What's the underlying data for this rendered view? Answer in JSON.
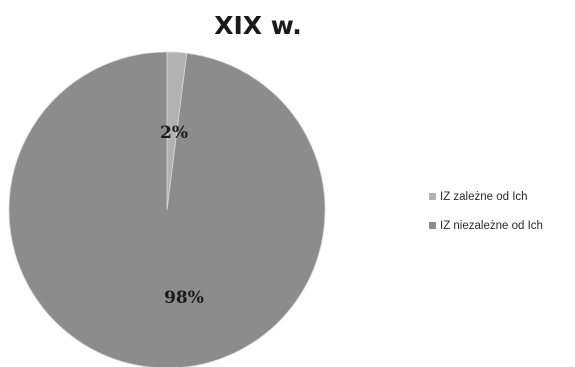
{
  "chart_data": {
    "type": "pie",
    "title": "XIX w.",
    "legend_position": "right",
    "slices": [
      {
        "label": "IZ zależne od Ich",
        "value": 2,
        "display": "2%",
        "color": "#b2b2b2"
      },
      {
        "label": "IZ niezależne od Ich",
        "value": 98,
        "display": "98%",
        "color": "#8c8c8c"
      }
    ]
  }
}
